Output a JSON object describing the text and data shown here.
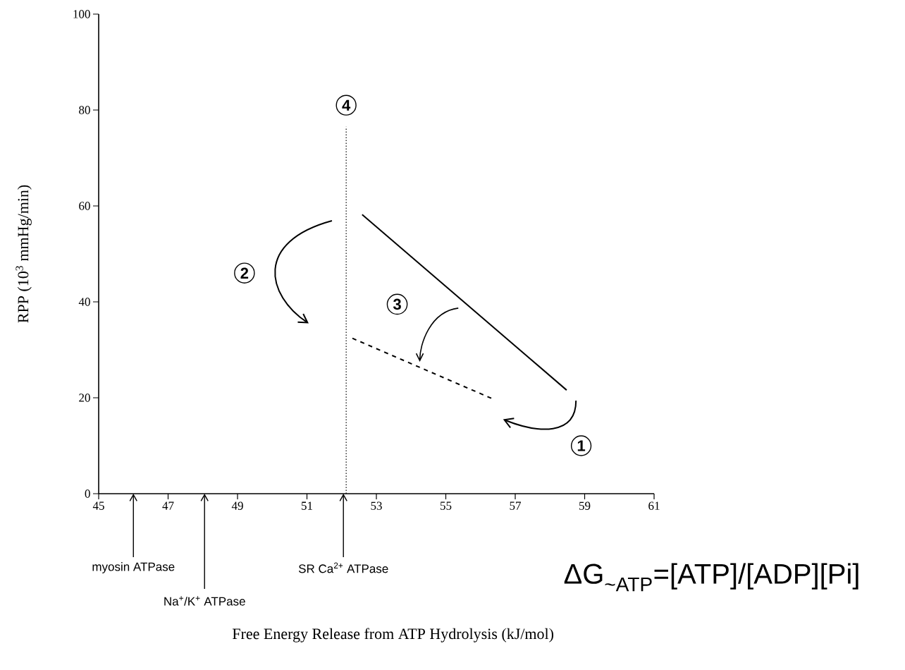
{
  "chart_data": {
    "type": "line",
    "ylabel": "RPP (10$^{3}$ mmHg/min)",
    "xlim": [
      45,
      61
    ],
    "ylim": [
      0,
      100
    ],
    "xticks": [
      45,
      47,
      49,
      51,
      53,
      55,
      57,
      59,
      61
    ],
    "yticks": [
      0,
      20,
      40,
      60,
      80,
      100
    ],
    "grid": false,
    "marker": "none",
    "series": [
      {
        "line_style": "solid",
        "color": "#000000",
        "x": [
          52.59,
          58.48
        ],
        "values": [
          58.2,
          21.6
        ]
      },
      {
        "line_style": "dashed",
        "color": "#000000",
        "x": [
          52.31,
          56.31
        ],
        "values": [
          32.4,
          19.9
        ]
      },
      {
        "line_style": "dotted",
        "color": "#000000",
        "x": [
          52.13,
          52.13
        ],
        "values": [
          0,
          76.5
        ]
      }
    ],
    "annotations": [
      "myosin ATPase",
      "Na$^{+}$/K$^{+}$ ATPase",
      "SR Ca$^{2+}$ ATPase",
      {
        "text": "1",
        "x": 58.9,
        "y": 10
      },
      {
        "text": "2",
        "x": 49.2,
        "y": 46
      },
      {
        "text": "3",
        "x": 53.6,
        "y": 39.5
      },
      {
        "text": "4",
        "x": 52.13,
        "y": 81
      },
      "ΔG$_{~ATP}$=[ATP]/[ADP][Pi]",
      "Free Energy Release from ATP Hydrolysis (kJ/mol)"
    ]
  }
}
